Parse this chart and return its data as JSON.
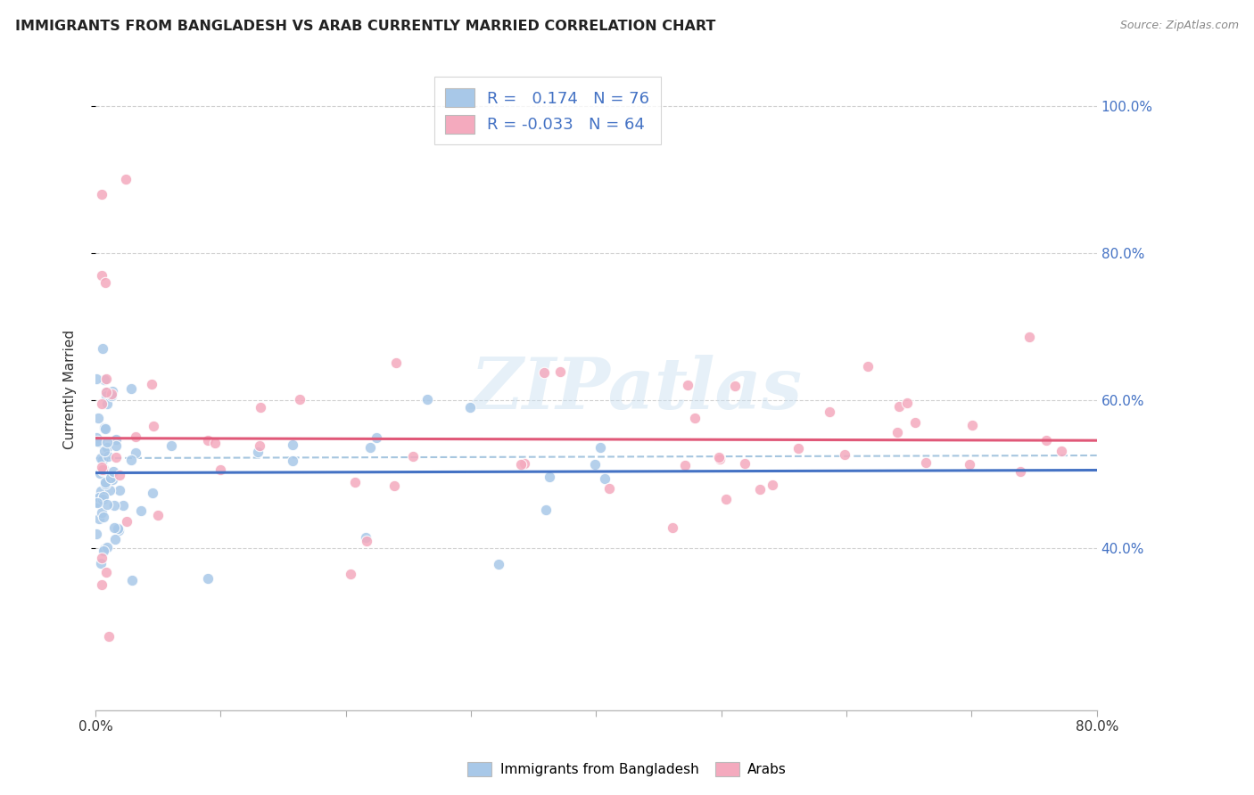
{
  "title": "IMMIGRANTS FROM BANGLADESH VS ARAB CURRENTLY MARRIED CORRELATION CHART",
  "source": "Source: ZipAtlas.com",
  "ylabel": "Currently Married",
  "legend_label1": "Immigrants from Bangladesh",
  "legend_label2": "Arabs",
  "r1": 0.174,
  "n1": 76,
  "r2": -0.033,
  "n2": 64,
  "color_bangladesh": "#a8c8e8",
  "color_arab": "#f4aabe",
  "color_trend1": "#4472c4",
  "color_trend2": "#e05878",
  "color_dashed": "#90b8d8",
  "watermark": "ZIPatlas",
  "xlim": [
    0.0,
    0.8
  ],
  "ylim": [
    0.18,
    1.05
  ],
  "yticks": [
    0.4,
    0.6,
    0.8,
    1.0
  ],
  "ytick_labels": [
    "40.0%",
    "60.0%",
    "80.0%",
    "100.0%"
  ]
}
